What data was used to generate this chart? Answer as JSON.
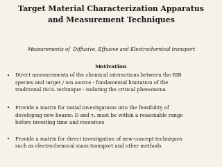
{
  "title": "Target Material Characterization Apparatus\nand Measurement Techniques",
  "subtitle": "Measurements of  Diffusive, Effusive and Electrochemical transport",
  "motivation_label": "Motivation",
  "bullet1": "Direct measurements of the chemical interactions between the RIB\nspecies and target / ion source - fundamental limitation of the\ntraditional ISOL technique - isolating the critical phenomena",
  "bullet2": "Provide a matrix for initial investigations into the feasibility of\ndeveloping new beams: D and τₐ must be within a reasonable range\nbefore investing time and resources",
  "bullet3": "Provide a matrix for direct investigation of new-concept techniques\nsuch as electrochemical mass transport and other methods",
  "bg_color": "#f5f2ea",
  "text_color": "#1a1a1a",
  "title_fontsize": 7.8,
  "subtitle_fontsize": 5.0,
  "body_fontsize": 5.0,
  "motivation_fontsize": 5.5
}
